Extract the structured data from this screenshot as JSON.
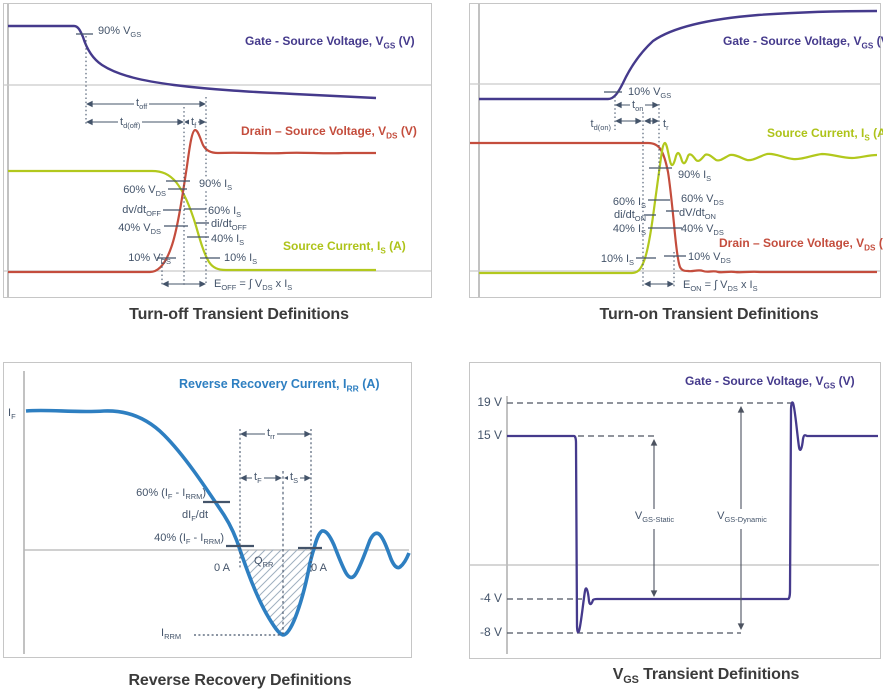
{
  "colors": {
    "vgs_purple": "#453a8c",
    "vds_red": "#c44d3d",
    "is_green": "#b2c81d",
    "irr_blue": "#2e7fc1",
    "annotation": "#44546a",
    "caption_text": "#3b3b3b"
  },
  "charts": {
    "turn_off": {
      "caption": "Turn-off Transient Definitions",
      "series_labels": {
        "vgs": "Gate - Source Voltage, V~GS~ (V)",
        "vds": "Drain – Source Voltage, V~DS~ (V)",
        "is": "Source Current, I~S~ (A)"
      },
      "annotations": {
        "p90vgs": "90% V~GS~",
        "toff": "t~off~",
        "tdoff": "t~d(off)~",
        "tf": "t~f~",
        "p60vds": "60% V~DS~",
        "dvdtoff": "dv/dt~OFF~",
        "p40vds": "40% V~DS~",
        "p10vds": "10% V~DS~",
        "p90is": "90% I~S~",
        "p60is": "60% I~S~",
        "didtoff": "di/dt~OFF~",
        "p40is": "40% I~S~",
        "p10is": "10% I~S~",
        "eoff": "E~OFF~ = ∫ V~DS~ x I~S~"
      }
    },
    "turn_on": {
      "caption": "Turn-on Transient Definitions",
      "series_labels": {
        "vgs": "Gate - Source Voltage, V~GS~ (V)",
        "is": "Source Current, I~S~ (A)",
        "vds": "Drain – Source Voltage, V~DS~ (V)"
      },
      "annotations": {
        "p10vgs": "10% V~GS~",
        "ton": "t~on~",
        "tdon": "t~d(on)~",
        "tr": "t~r~",
        "p90is": "90% I~S~",
        "p60is": "60% I~S~",
        "didton": "di/dt~ON~",
        "p40is": "40% I~S~",
        "p10is": "10% I~S~",
        "p60vds": "60% V~DS~",
        "dvdton": "dV/dt~ON~",
        "p40vds": "40% V~DS~",
        "p10vds": "10% V~DS~",
        "eon": "E~ON~ = ∫ V~DS~ x I~S~"
      }
    },
    "reverse_recovery": {
      "caption": "Reverse Recovery Definitions",
      "series_labels": {
        "irr": "Reverse Recovery Current, I~RR~ (A)"
      },
      "annotations": {
        "if_": "I~F~",
        "trr": "t~rr~",
        "tf": "t~F~",
        "ts": "t~S~",
        "p60": "60% (I~F~ - I~RRM~)",
        "dif_dt": "dI~F~/dt",
        "p40": "40% (I~F~ - I~RRM~)",
        "zero_left": "0 A",
        "qrr": "Q~RR~",
        "zero_right": "0 A",
        "irrm": "I~RRM~"
      }
    },
    "vgs_transient": {
      "caption": "V~GS~ Transient Definitions",
      "series_labels": {
        "vgs": "Gate - Source Voltage, V~GS~ (V)"
      },
      "annotations": {
        "v19": "19 V",
        "v15": "15 V",
        "vm4": "-4 V",
        "vm8": "-8 V",
        "vgs_static": "V~GS-Static~",
        "vgs_dynamic": "V~GS-Dynamic~"
      }
    }
  },
  "chart_data": [
    {
      "id": "turn_off",
      "type": "line",
      "title": "Turn-off Transient Definitions",
      "xlabel": "time (axis unlabeled)",
      "ylabel": "amplitude (axis unlabeled)",
      "grid": "off",
      "series": [
        {
          "name": "Gate - Source Voltage, VGS (V)",
          "color": "#453a8c",
          "points_pct_of_plot": [
            [
              0,
              93
            ],
            [
              17,
              93
            ],
            [
              19,
              89
            ],
            [
              23,
              79
            ],
            [
              30,
              72
            ],
            [
              42,
              70
            ],
            [
              60,
              68
            ],
            [
              87,
              67
            ]
          ],
          "note": "high plateau, breakpoint at 90% VGS, exponential decay"
        },
        {
          "name": "Drain – Source Voltage, VDS (V)",
          "color": "#c44d3d",
          "points_pct_of_plot": [
            [
              0,
              8
            ],
            [
              35,
              8
            ],
            [
              39,
              17
            ],
            [
              42,
              45
            ],
            [
              44,
              57
            ],
            [
              45,
              57
            ],
            [
              47,
              52
            ],
            [
              50,
              49
            ],
            [
              87,
              49
            ]
          ],
          "note": "rises steeply during turn-off with overshoot peak, then settles"
        },
        {
          "name": "Source Current, IS (A)",
          "color": "#b2c81d",
          "points_pct_of_plot": [
            [
              0,
              43
            ],
            [
              35,
              43
            ],
            [
              40,
              36
            ],
            [
              45,
              24
            ],
            [
              48,
              12
            ],
            [
              52,
              9
            ],
            [
              87,
              9
            ]
          ],
          "note": "falls through 90/60/40/10% levels"
        }
      ],
      "annotations": [
        "90% VGS",
        "toff",
        "td(off)",
        "tf",
        "60% VDS",
        "dv/dtOFF",
        "40% VDS",
        "10% VDS",
        "90% IS",
        "60% IS",
        "di/dtOFF",
        "40% IS",
        "10% IS",
        "EOFF = ∫ VDS x IS"
      ]
    },
    {
      "id": "turn_on",
      "type": "line",
      "title": "Turn-on Transient Definitions",
      "xlabel": "time (axis unlabeled)",
      "ylabel": "amplitude (axis unlabeled)",
      "grid": "off",
      "series": [
        {
          "name": "Gate - Source Voltage, VGS (V)",
          "color": "#453a8c",
          "points_pct_of_plot": [
            [
              0,
              68
            ],
            [
              33,
              68
            ],
            [
              36,
              73
            ],
            [
              42,
              87
            ],
            [
              55,
              94
            ],
            [
              80,
              97
            ],
            [
              100,
              97
            ]
          ],
          "note": "rises from low plateau at 10% VGS breakpoint toward high asymptote"
        },
        {
          "name": "Source Current, IS (A)",
          "color": "#b2c81d",
          "points_pct_of_plot": [
            [
              0,
              8
            ],
            [
              39,
              8
            ],
            [
              43,
              22
            ],
            [
              46,
              49
            ],
            [
              47,
              52
            ],
            [
              49,
              46
            ],
            [
              52,
              48
            ],
            [
              60,
              48
            ],
            [
              100,
              48
            ]
          ],
          "note": "rises steeply to peak then decaying ringing oscillation"
        },
        {
          "name": "Drain – Source Voltage, VDS (V)",
          "color": "#c44d3d",
          "points_pct_of_plot": [
            [
              0,
              53
            ],
            [
              43,
              53
            ],
            [
              46,
              43
            ],
            [
              48,
              25
            ],
            [
              50,
              10
            ],
            [
              52,
              9
            ],
            [
              70,
              9
            ],
            [
              100,
              9
            ]
          ],
          "note": "falls steeply during turn-on, small ripples after settling"
        }
      ],
      "annotations": [
        "10% VGS",
        "ton",
        "td(on)",
        "tr",
        "90% IS",
        "60% IS",
        "di/dtON",
        "40% IS",
        "10% IS",
        "60% VDS",
        "dV/dtON",
        "40% VDS",
        "10% VDS",
        "EON = ∫ VDS x IS"
      ]
    },
    {
      "id": "reverse_recovery",
      "type": "line",
      "title": "Reverse Recovery Definitions",
      "xlabel": "time (axis unlabeled)",
      "ylabel": "current (A), zero line marked 0 A",
      "grid": "off",
      "series": [
        {
          "name": "Reverse Recovery Current, IRR (A)",
          "color": "#2e7fc1",
          "points_pct_of_plot": [
            [
              0,
              47
            ],
            [
              25,
              47
            ],
            [
              35,
              42
            ],
            [
              45,
              30
            ],
            [
              57,
              0
            ],
            [
              68,
              -29
            ],
            [
              75,
              0
            ],
            [
              78,
              6
            ],
            [
              84,
              -10
            ],
            [
              89,
              5
            ],
            [
              94,
              -8
            ],
            [
              99,
              -1
            ]
          ],
          "note": "IF plateau, fall at slope dIF/dt, zero crossing, negative peak IRRM, decaying ringing; hatched lobe between curve and 0 A line is QRR"
        }
      ],
      "annotations": [
        "IF",
        "trr",
        "tF",
        "tS",
        "60% (IF - IRRM)",
        "dIF/dt",
        "40% (IF - IRRM)",
        "0 A",
        "QRR",
        "0 A",
        "IRRM"
      ]
    },
    {
      "id": "vgs_transient",
      "type": "line",
      "title": "VGS Transient Definitions",
      "xlabel": "time (axis unlabeled)",
      "ylabel": "VGS (V)",
      "y_ticks": [
        19,
        15,
        -4,
        -8
      ],
      "grid": "off",
      "series": [
        {
          "name": "Gate - Source Voltage, VGS (V)",
          "color": "#453a8c",
          "points_time_V": [
            [
              0,
              15
            ],
            [
              18,
              15
            ],
            [
              18.5,
              -8
            ],
            [
              19.5,
              -3
            ],
            [
              20.5,
              -4.3
            ],
            [
              21,
              -4
            ],
            [
              76,
              -4
            ],
            [
              76.5,
              19
            ],
            [
              78,
              14
            ],
            [
              79,
              15.3
            ],
            [
              80,
              15
            ],
            [
              100,
              15
            ]
          ],
          "note": "15 V plateau, fast fall with undershoot ringing to -8 V, -4 V static low plateau, fast rise with overshoot ringing to 19 V, settles at 15 V"
        }
      ],
      "annotations": [
        "VGS-Static spans 15 V to -4 V",
        "VGS-Dynamic spans 19 V to -8 V"
      ]
    }
  ]
}
